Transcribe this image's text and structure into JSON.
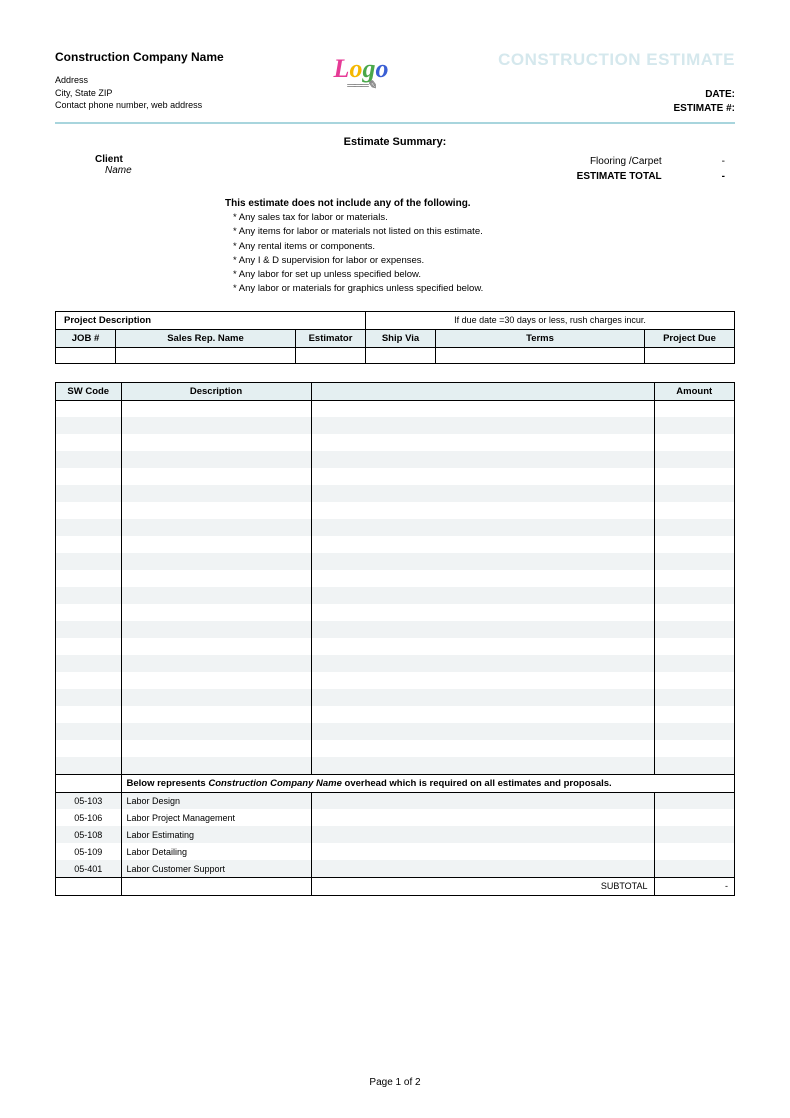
{
  "company": {
    "name": "Construction Company Name",
    "address": "Address",
    "city_state_zip": "City, State ZIP",
    "contact": "Contact phone number, web address"
  },
  "document": {
    "title": "CONSTRUCTION ESTIMATE",
    "date_label": "DATE:",
    "estimate_no_label": "ESTIMATE #:"
  },
  "summary": {
    "title": "Estimate Summary:",
    "client_label": "Client",
    "client_name": "Name",
    "line1_label": "Flooring /Carpet",
    "line1_value": "-",
    "total_label": "ESTIMATE TOTAL",
    "total_value": "-"
  },
  "exclusions": {
    "title": "This estimate does not include any of the following.",
    "items": [
      "* Any sales tax for labor or materials.",
      "* Any items for labor or materials not listed on this estimate.",
      "* Any rental items or components.",
      "* Any I & D supervision for labor or expenses.",
      "* Any labor for set up unless specified below.",
      "* Any labor or materials for graphics unless specified below."
    ]
  },
  "project_table": {
    "pd_label": "Project Description",
    "rush_note": "If due date =30 days or less, rush charges incur.",
    "headers": {
      "job": "JOB #",
      "sales_rep": "Sales Rep. Name",
      "estimator": "Estimator",
      "ship_via": "Ship Via",
      "terms": "Terms",
      "project_due": "Project Due"
    }
  },
  "items_table": {
    "headers": {
      "sw_code": "SW Code",
      "description": "Description",
      "amount": "Amount"
    },
    "blank_row_count": 22,
    "overhead_note": {
      "prefix": "Below represents ",
      "company_italic": "Construction Company Name",
      "suffix": " overhead which is required on all estimates and proposals."
    },
    "overhead_rows": [
      {
        "code": "05-103",
        "desc": "Labor Design"
      },
      {
        "code": "05-106",
        "desc": "Labor Project Management"
      },
      {
        "code": "05-108",
        "desc": "Labor Estimating"
      },
      {
        "code": "05-109",
        "desc": "Labor Detailing"
      },
      {
        "code": "05-401",
        "desc": "Labor Customer Support"
      }
    ],
    "subtotal_label": "SUBTOTAL",
    "subtotal_value": "-"
  },
  "footer": "Page 1 of 2",
  "colors": {
    "header_bg": "#e4eff1",
    "alt_row_bg": "#f0f3f4",
    "title_color": "#d5e8ed",
    "border": "#000000"
  }
}
